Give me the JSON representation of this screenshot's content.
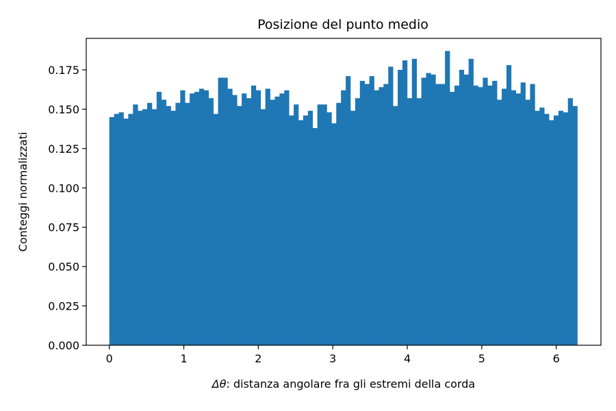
{
  "chart_data": {
    "type": "bar",
    "title": "Posizione del punto medio",
    "xlabel_symbol": "Δθ",
    "xlabel_rest": ": distanza angolare fra gli estremi della corda",
    "ylabel": "Conteggi normalizzati",
    "xlim": [
      -0.31,
      6.6
    ],
    "ylim": [
      0,
      0.195
    ],
    "xticks": [
      0,
      1,
      2,
      3,
      4,
      5,
      6
    ],
    "xtick_labels": [
      "0",
      "1",
      "2",
      "3",
      "4",
      "5",
      "6"
    ],
    "yticks": [
      0,
      0.025,
      0.05,
      0.075,
      0.1,
      0.125,
      0.15,
      0.175
    ],
    "ytick_labels": [
      "0.000",
      "0.025",
      "0.050",
      "0.075",
      "0.100",
      "0.125",
      "0.150",
      "0.175"
    ],
    "bin_range": [
      0,
      6.2832
    ],
    "bar_color": "#1f77b4",
    "grid": false,
    "values": [
      0.145,
      0.147,
      0.148,
      0.144,
      0.147,
      0.153,
      0.149,
      0.15,
      0.154,
      0.15,
      0.161,
      0.156,
      0.152,
      0.149,
      0.154,
      0.162,
      0.154,
      0.16,
      0.161,
      0.163,
      0.162,
      0.157,
      0.147,
      0.17,
      0.17,
      0.163,
      0.159,
      0.152,
      0.16,
      0.157,
      0.165,
      0.162,
      0.15,
      0.163,
      0.156,
      0.158,
      0.16,
      0.162,
      0.146,
      0.153,
      0.143,
      0.146,
      0.149,
      0.138,
      0.153,
      0.153,
      0.148,
      0.141,
      0.154,
      0.162,
      0.171,
      0.149,
      0.157,
      0.168,
      0.166,
      0.171,
      0.162,
      0.164,
      0.166,
      0.177,
      0.152,
      0.175,
      0.181,
      0.157,
      0.182,
      0.157,
      0.17,
      0.173,
      0.172,
      0.166,
      0.166,
      0.187,
      0.161,
      0.165,
      0.175,
      0.172,
      0.182,
      0.165,
      0.164,
      0.17,
      0.165,
      0.168,
      0.156,
      0.163,
      0.178,
      0.162,
      0.16,
      0.167,
      0.156,
      0.166,
      0.149,
      0.151,
      0.147,
      0.143,
      0.146,
      0.149,
      0.148,
      0.157,
      0.152
    ]
  }
}
